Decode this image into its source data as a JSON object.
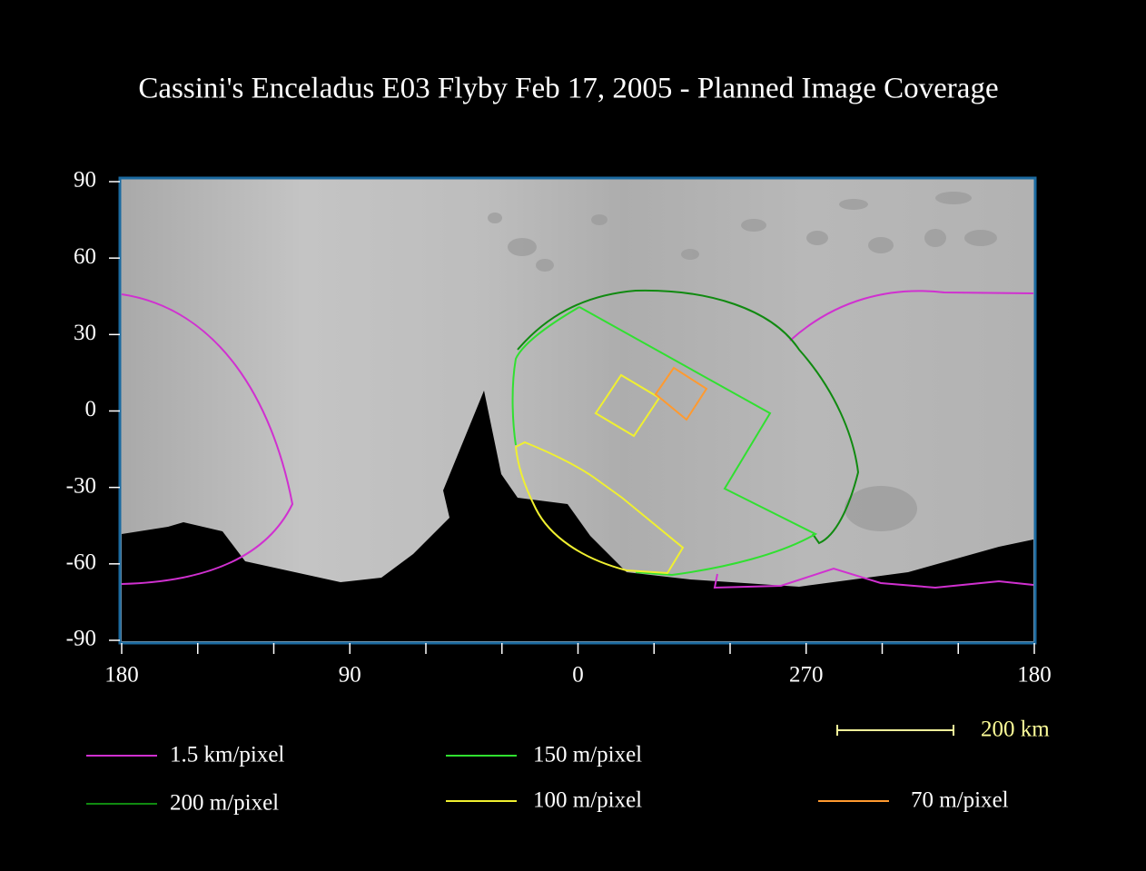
{
  "title": "Cassini's Enceladus E03 Flyby Feb 17, 2005 - Planned Image Coverage",
  "axes": {
    "y_labels": [
      "90",
      "60",
      "30",
      "0",
      "-30",
      "-60",
      "-90"
    ],
    "x_labels": [
      "180",
      "90",
      "0",
      "270",
      "180"
    ]
  },
  "scale_bar": {
    "label": "200 km"
  },
  "legend": [
    {
      "label": "1.5 km/pixel",
      "color": "#d030d0"
    },
    {
      "label": "150 m/pixel",
      "color": "#30e030"
    },
    {
      "label": "200 m/pixel",
      "color": "#108a10"
    },
    {
      "label": "100 m/pixel",
      "color": "#f0f030"
    },
    {
      "label": "70 m/pixel",
      "color": "#ff9a30"
    }
  ]
}
